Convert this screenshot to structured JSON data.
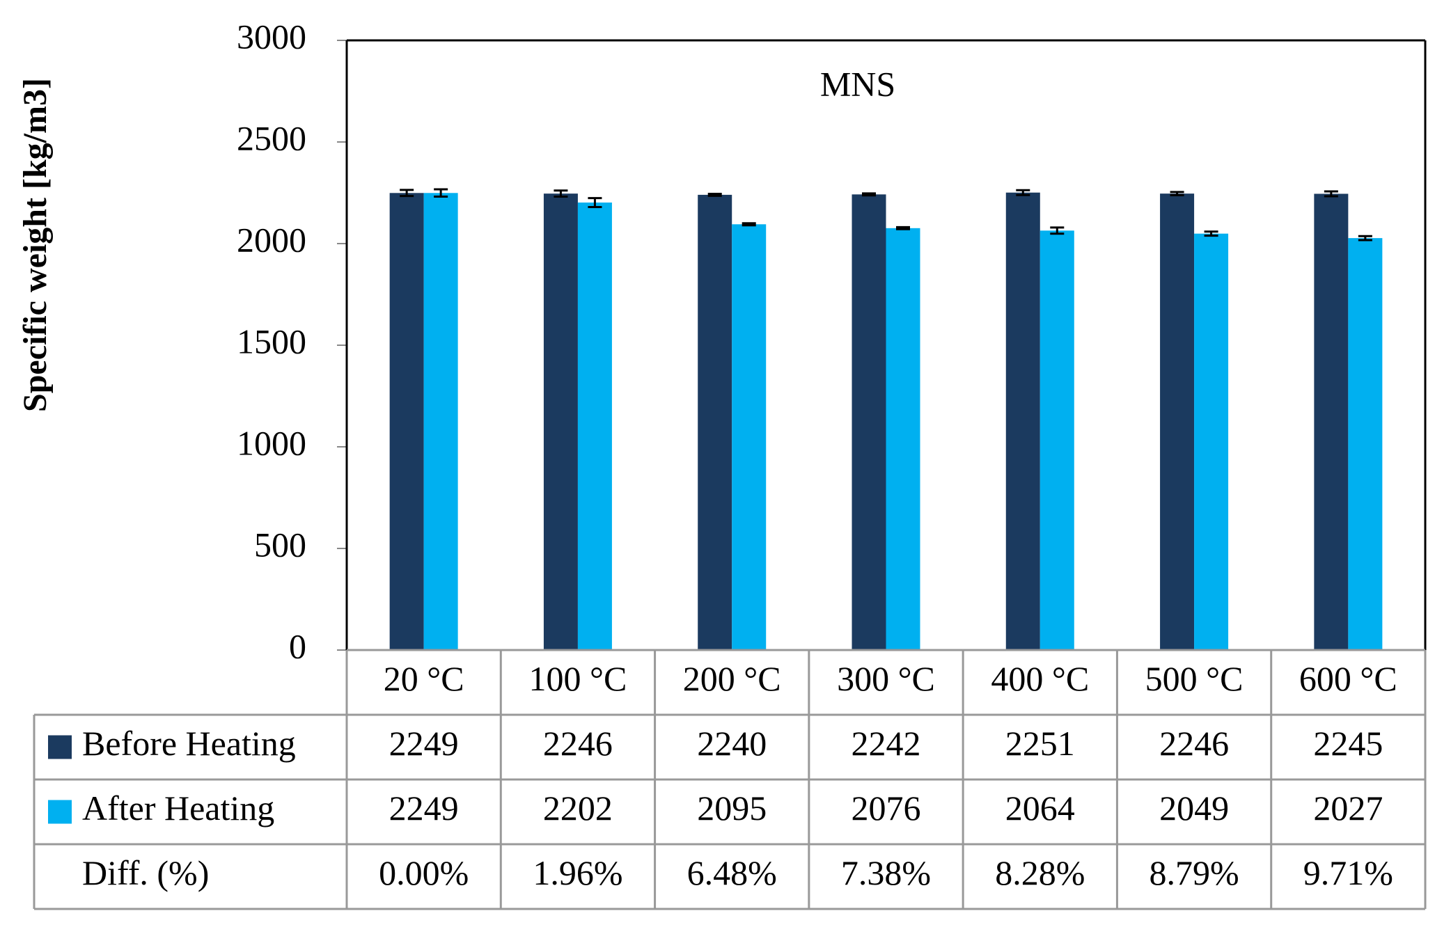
{
  "chart_data": {
    "type": "bar",
    "title": "MNS",
    "y_label": "Specific weight  [kg/m3]",
    "categories": [
      "20 °C",
      "100 °C",
      "200 °C",
      "300 °C",
      "400 °C",
      "500 °C",
      "600 °C"
    ],
    "series": [
      {
        "name": "Before Heating",
        "color": "#1b3a5f",
        "values": [
          2249,
          2246,
          2240,
          2242,
          2251,
          2246,
          2245
        ],
        "errors": [
          15,
          15,
          5,
          5,
          12,
          8,
          12
        ]
      },
      {
        "name": "After Heating",
        "color": "#00b0f0",
        "values": [
          2249,
          2202,
          2095,
          2076,
          2064,
          2049,
          2027
        ],
        "errors": [
          18,
          22,
          5,
          5,
          15,
          10,
          10
        ]
      }
    ],
    "diff": {
      "name": "Diff. (%)",
      "labels": [
        "0.00%",
        "1.96%",
        "6.48%",
        "7.38%",
        "8.28%",
        "8.79%",
        "9.71%"
      ]
    },
    "ylim": [
      0,
      3000
    ],
    "yticks": [
      0,
      500,
      1000,
      1500,
      2000,
      2500,
      3000
    ]
  }
}
